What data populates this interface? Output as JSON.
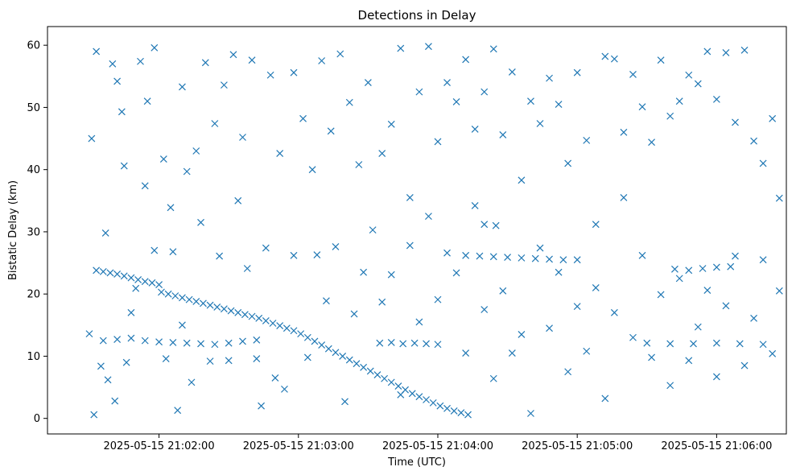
{
  "chart_data": {
    "type": "scatter",
    "title": "Detections in Delay",
    "xlabel": "Time (UTC)",
    "ylabel": "Bistatic Delay (km)",
    "x_type": "datetime",
    "xlim": [
      "2025-05-15 21:01:12",
      "2025-05-15 21:06:30"
    ],
    "ylim": [
      -2.5,
      63
    ],
    "x_ticks": [
      "2025-05-15 21:02:00",
      "2025-05-15 21:03:00",
      "2025-05-15 21:04:00",
      "2025-05-15 21:05:00",
      "2025-05-15 21:06:00"
    ],
    "y_ticks": [
      0,
      10,
      20,
      30,
      40,
      50,
      60
    ],
    "grid": false,
    "marker": "x",
    "color": "#1f77b4",
    "series": [
      {
        "points": [
          [
            "2025-05-15 21:01:33",
            23.8
          ],
          [
            "2025-05-15 21:01:36",
            23.6
          ],
          [
            "2025-05-15 21:01:39",
            23.4
          ],
          [
            "2025-05-15 21:01:42",
            23.2
          ],
          [
            "2025-05-15 21:01:45",
            22.9
          ],
          [
            "2025-05-15 21:01:48",
            22.6
          ],
          [
            "2025-05-15 21:01:51",
            22.3
          ],
          [
            "2025-05-15 21:01:54",
            22.0
          ],
          [
            "2025-05-15 21:01:57",
            21.8
          ],
          [
            "2025-05-15 21:02:00",
            21.5
          ],
          [
            "2025-05-15 21:02:01",
            20.3
          ],
          [
            "2025-05-15 21:02:04",
            20.0
          ],
          [
            "2025-05-15 21:02:07",
            19.7
          ],
          [
            "2025-05-15 21:02:10",
            19.4
          ],
          [
            "2025-05-15 21:02:13",
            19.1
          ],
          [
            "2025-05-15 21:02:16",
            18.8
          ],
          [
            "2025-05-15 21:02:19",
            18.5
          ],
          [
            "2025-05-15 21:02:22",
            18.2
          ],
          [
            "2025-05-15 21:02:25",
            17.9
          ],
          [
            "2025-05-15 21:02:28",
            17.6
          ],
          [
            "2025-05-15 21:02:31",
            17.3
          ],
          [
            "2025-05-15 21:02:34",
            17.0
          ],
          [
            "2025-05-15 21:02:37",
            16.7
          ],
          [
            "2025-05-15 21:02:40",
            16.4
          ],
          [
            "2025-05-15 21:02:43",
            16.1
          ],
          [
            "2025-05-15 21:02:46",
            15.7
          ],
          [
            "2025-05-15 21:02:49",
            15.3
          ],
          [
            "2025-05-15 21:02:52",
            14.9
          ],
          [
            "2025-05-15 21:02:55",
            14.5
          ],
          [
            "2025-05-15 21:02:58",
            14.1
          ],
          [
            "2025-05-15 21:03:01",
            13.6
          ],
          [
            "2025-05-15 21:03:04",
            13.0
          ],
          [
            "2025-05-15 21:03:07",
            12.4
          ],
          [
            "2025-05-15 21:03:10",
            11.8
          ],
          [
            "2025-05-15 21:03:13",
            11.2
          ],
          [
            "2025-05-15 21:03:16",
            10.6
          ],
          [
            "2025-05-15 21:03:19",
            10.0
          ],
          [
            "2025-05-15 21:03:22",
            9.4
          ],
          [
            "2025-05-15 21:03:25",
            8.8
          ],
          [
            "2025-05-15 21:03:28",
            8.2
          ],
          [
            "2025-05-15 21:03:31",
            7.6
          ],
          [
            "2025-05-15 21:03:34",
            7.0
          ],
          [
            "2025-05-15 21:03:37",
            6.4
          ],
          [
            "2025-05-15 21:03:40",
            5.8
          ],
          [
            "2025-05-15 21:03:43",
            5.2
          ],
          [
            "2025-05-15 21:03:46",
            4.6
          ],
          [
            "2025-05-15 21:03:49",
            4.0
          ],
          [
            "2025-05-15 21:03:52",
            3.5
          ],
          [
            "2025-05-15 21:03:55",
            3.0
          ],
          [
            "2025-05-15 21:03:58",
            2.5
          ],
          [
            "2025-05-15 21:04:01",
            2.0
          ],
          [
            "2025-05-15 21:04:04",
            1.6
          ],
          [
            "2025-05-15 21:04:07",
            1.2
          ],
          [
            "2025-05-15 21:04:10",
            0.9
          ],
          [
            "2025-05-15 21:04:13",
            0.6
          ],
          [
            "2025-05-15 21:01:30",
            13.6
          ],
          [
            "2025-05-15 21:01:36",
            12.5
          ],
          [
            "2025-05-15 21:01:42",
            12.7
          ],
          [
            "2025-05-15 21:01:48",
            12.9
          ],
          [
            "2025-05-15 21:01:54",
            12.5
          ],
          [
            "2025-05-15 21:02:00",
            12.3
          ],
          [
            "2025-05-15 21:02:06",
            12.2
          ],
          [
            "2025-05-15 21:02:12",
            12.1
          ],
          [
            "2025-05-15 21:02:18",
            12.0
          ],
          [
            "2025-05-15 21:02:24",
            11.9
          ],
          [
            "2025-05-15 21:02:30",
            12.1
          ],
          [
            "2025-05-15 21:02:36",
            12.4
          ],
          [
            "2025-05-15 21:02:42",
            12.6
          ],
          [
            "2025-05-15 21:03:35",
            12.1
          ],
          [
            "2025-05-15 21:03:40",
            12.2
          ],
          [
            "2025-05-15 21:03:45",
            12.0
          ],
          [
            "2025-05-15 21:03:50",
            12.1
          ],
          [
            "2025-05-15 21:03:55",
            12.0
          ],
          [
            "2025-05-15 21:04:00",
            11.9
          ],
          [
            "2025-05-15 21:04:12",
            26.2
          ],
          [
            "2025-05-15 21:04:18",
            26.1
          ],
          [
            "2025-05-15 21:04:24",
            26.0
          ],
          [
            "2025-05-15 21:04:30",
            25.9
          ],
          [
            "2025-05-15 21:04:36",
            25.8
          ],
          [
            "2025-05-15 21:04:42",
            25.7
          ],
          [
            "2025-05-15 21:04:48",
            25.6
          ],
          [
            "2025-05-15 21:04:54",
            25.5
          ],
          [
            "2025-05-15 21:05:00",
            25.5
          ],
          [
            "2025-05-15 21:04:20",
            31.2
          ],
          [
            "2025-05-15 21:04:25",
            31.0
          ],
          [
            "2025-05-15 21:05:42",
            24.0
          ],
          [
            "2025-05-15 21:05:48",
            23.8
          ],
          [
            "2025-05-15 21:05:54",
            24.1
          ],
          [
            "2025-05-15 21:06:00",
            24.3
          ],
          [
            "2025-05-15 21:06:06",
            24.4
          ],
          [
            "2025-05-15 21:05:30",
            12.1
          ],
          [
            "2025-05-15 21:05:40",
            12.0
          ],
          [
            "2025-05-15 21:05:50",
            12.0
          ],
          [
            "2025-05-15 21:06:00",
            12.1
          ],
          [
            "2025-05-15 21:06:10",
            12.0
          ],
          [
            "2025-05-15 21:06:20",
            11.9
          ],
          [
            "2025-05-15 21:01:31",
            45.0
          ],
          [
            "2025-05-15 21:01:33",
            59.0
          ],
          [
            "2025-05-15 21:01:37",
            29.8
          ],
          [
            "2025-05-15 21:01:40",
            57.0
          ],
          [
            "2025-05-15 21:01:42",
            54.2
          ],
          [
            "2025-05-15 21:01:44",
            49.3
          ],
          [
            "2025-05-15 21:01:45",
            40.6
          ],
          [
            "2025-05-15 21:01:48",
            17.0
          ],
          [
            "2025-05-15 21:01:52",
            57.4
          ],
          [
            "2025-05-15 21:01:55",
            51.0
          ],
          [
            "2025-05-15 21:01:58",
            59.6
          ],
          [
            "2025-05-15 21:02:02",
            41.7
          ],
          [
            "2025-05-15 21:02:05",
            33.9
          ],
          [
            "2025-05-15 21:02:08",
            1.3
          ],
          [
            "2025-05-15 21:02:10",
            53.3
          ],
          [
            "2025-05-15 21:02:12",
            39.7
          ],
          [
            "2025-05-15 21:02:16",
            43.0
          ],
          [
            "2025-05-15 21:02:20",
            57.2
          ],
          [
            "2025-05-15 21:02:24",
            47.4
          ],
          [
            "2025-05-15 21:02:28",
            53.6
          ],
          [
            "2025-05-15 21:02:32",
            58.5
          ],
          [
            "2025-05-15 21:02:36",
            45.2
          ],
          [
            "2025-05-15 21:02:40",
            57.6
          ],
          [
            "2025-05-15 21:02:44",
            2.0
          ],
          [
            "2025-05-15 21:02:48",
            55.2
          ],
          [
            "2025-05-15 21:02:52",
            42.6
          ],
          [
            "2025-05-15 21:02:58",
            55.6
          ],
          [
            "2025-05-15 21:03:02",
            48.2
          ],
          [
            "2025-05-15 21:03:06",
            40.0
          ],
          [
            "2025-05-15 21:03:10",
            57.5
          ],
          [
            "2025-05-15 21:03:14",
            46.2
          ],
          [
            "2025-05-15 21:03:18",
            58.6
          ],
          [
            "2025-05-15 21:03:22",
            50.8
          ],
          [
            "2025-05-15 21:03:26",
            40.8
          ],
          [
            "2025-05-15 21:03:30",
            54.0
          ],
          [
            "2025-05-15 21:03:36",
            42.6
          ],
          [
            "2025-05-15 21:03:40",
            47.3
          ],
          [
            "2025-05-15 21:03:44",
            59.5
          ],
          [
            "2025-05-15 21:03:48",
            35.5
          ],
          [
            "2025-05-15 21:03:52",
            52.5
          ],
          [
            "2025-05-15 21:03:56",
            59.8
          ],
          [
            "2025-05-15 21:04:00",
            44.5
          ],
          [
            "2025-05-15 21:04:04",
            54.0
          ],
          [
            "2025-05-15 21:04:08",
            50.9
          ],
          [
            "2025-05-15 21:04:12",
            57.7
          ],
          [
            "2025-05-15 21:04:16",
            46.5
          ],
          [
            "2025-05-15 21:04:20",
            52.5
          ],
          [
            "2025-05-15 21:04:24",
            59.4
          ],
          [
            "2025-05-15 21:04:28",
            45.6
          ],
          [
            "2025-05-15 21:04:32",
            55.7
          ],
          [
            "2025-05-15 21:04:36",
            38.3
          ],
          [
            "2025-05-15 21:04:40",
            51.0
          ],
          [
            "2025-05-15 21:04:44",
            47.4
          ],
          [
            "2025-05-15 21:04:48",
            54.7
          ],
          [
            "2025-05-15 21:04:52",
            50.5
          ],
          [
            "2025-05-15 21:04:56",
            41.0
          ],
          [
            "2025-05-15 21:05:00",
            55.6
          ],
          [
            "2025-05-15 21:05:04",
            44.7
          ],
          [
            "2025-05-15 21:05:08",
            31.2
          ],
          [
            "2025-05-15 21:05:12",
            58.2
          ],
          [
            "2025-05-15 21:05:16",
            57.8
          ],
          [
            "2025-05-15 21:05:20",
            46.0
          ],
          [
            "2025-05-15 21:05:24",
            55.3
          ],
          [
            "2025-05-15 21:05:28",
            50.1
          ],
          [
            "2025-05-15 21:05:32",
            44.4
          ],
          [
            "2025-05-15 21:05:36",
            57.6
          ],
          [
            "2025-05-15 21:05:40",
            48.6
          ],
          [
            "2025-05-15 21:05:44",
            51.0
          ],
          [
            "2025-05-15 21:05:48",
            55.2
          ],
          [
            "2025-05-15 21:05:52",
            53.8
          ],
          [
            "2025-05-15 21:05:56",
            59.0
          ],
          [
            "2025-05-15 21:06:00",
            51.3
          ],
          [
            "2025-05-15 21:06:04",
            58.8
          ],
          [
            "2025-05-15 21:06:08",
            47.6
          ],
          [
            "2025-05-15 21:06:12",
            59.2
          ],
          [
            "2025-05-15 21:06:16",
            44.6
          ],
          [
            "2025-05-15 21:06:20",
            41.0
          ],
          [
            "2025-05-15 21:06:24",
            48.2
          ],
          [
            "2025-05-15 21:06:27",
            35.4
          ],
          [
            "2025-05-15 21:01:32",
            0.6
          ],
          [
            "2025-05-15 21:01:35",
            8.4
          ],
          [
            "2025-05-15 21:01:38",
            6.2
          ],
          [
            "2025-05-15 21:01:41",
            2.8
          ],
          [
            "2025-05-15 21:01:46",
            9.0
          ],
          [
            "2025-05-15 21:01:50",
            20.9
          ],
          [
            "2025-05-15 21:01:54",
            37.4
          ],
          [
            "2025-05-15 21:01:58",
            27.0
          ],
          [
            "2025-05-15 21:02:03",
            9.6
          ],
          [
            "2025-05-15 21:02:06",
            26.8
          ],
          [
            "2025-05-15 21:02:10",
            15.0
          ],
          [
            "2025-05-15 21:02:14",
            5.8
          ],
          [
            "2025-05-15 21:02:18",
            31.5
          ],
          [
            "2025-05-15 21:02:22",
            9.2
          ],
          [
            "2025-05-15 21:02:26",
            26.1
          ],
          [
            "2025-05-15 21:02:30",
            9.3
          ],
          [
            "2025-05-15 21:02:34",
            35.0
          ],
          [
            "2025-05-15 21:02:38",
            24.1
          ],
          [
            "2025-05-15 21:02:42",
            9.6
          ],
          [
            "2025-05-15 21:02:46",
            27.4
          ],
          [
            "2025-05-15 21:02:50",
            6.5
          ],
          [
            "2025-05-15 21:02:54",
            4.7
          ],
          [
            "2025-05-15 21:02:58",
            26.2
          ],
          [
            "2025-05-15 21:03:04",
            9.8
          ],
          [
            "2025-05-15 21:03:08",
            26.3
          ],
          [
            "2025-05-15 21:03:12",
            18.9
          ],
          [
            "2025-05-15 21:03:16",
            27.6
          ],
          [
            "2025-05-15 21:03:20",
            2.7
          ],
          [
            "2025-05-15 21:03:24",
            16.8
          ],
          [
            "2025-05-15 21:03:28",
            23.5
          ],
          [
            "2025-05-15 21:03:32",
            30.3
          ],
          [
            "2025-05-15 21:03:36",
            18.7
          ],
          [
            "2025-05-15 21:03:40",
            23.1
          ],
          [
            "2025-05-15 21:03:44",
            3.8
          ],
          [
            "2025-05-15 21:03:48",
            27.8
          ],
          [
            "2025-05-15 21:03:52",
            15.5
          ],
          [
            "2025-05-15 21:03:56",
            32.5
          ],
          [
            "2025-05-15 21:04:00",
            19.1
          ],
          [
            "2025-05-15 21:04:04",
            26.6
          ],
          [
            "2025-05-15 21:04:08",
            23.4
          ],
          [
            "2025-05-15 21:04:12",
            10.5
          ],
          [
            "2025-05-15 21:04:16",
            34.2
          ],
          [
            "2025-05-15 21:04:20",
            17.5
          ],
          [
            "2025-05-15 21:04:24",
            6.4
          ],
          [
            "2025-05-15 21:04:28",
            20.5
          ],
          [
            "2025-05-15 21:04:32",
            10.5
          ],
          [
            "2025-05-15 21:04:36",
            13.5
          ],
          [
            "2025-05-15 21:04:40",
            0.8
          ],
          [
            "2025-05-15 21:04:44",
            27.4
          ],
          [
            "2025-05-15 21:04:48",
            14.5
          ],
          [
            "2025-05-15 21:04:52",
            23.5
          ],
          [
            "2025-05-15 21:04:56",
            7.5
          ],
          [
            "2025-05-15 21:05:00",
            18.0
          ],
          [
            "2025-05-15 21:05:04",
            10.8
          ],
          [
            "2025-05-15 21:05:08",
            21.0
          ],
          [
            "2025-05-15 21:05:12",
            3.2
          ],
          [
            "2025-05-15 21:05:16",
            17.0
          ],
          [
            "2025-05-15 21:05:20",
            35.5
          ],
          [
            "2025-05-15 21:05:24",
            13.0
          ],
          [
            "2025-05-15 21:05:28",
            26.2
          ],
          [
            "2025-05-15 21:05:32",
            9.8
          ],
          [
            "2025-05-15 21:05:36",
            19.9
          ],
          [
            "2025-05-15 21:05:40",
            5.3
          ],
          [
            "2025-05-15 21:05:44",
            22.5
          ],
          [
            "2025-05-15 21:05:48",
            9.3
          ],
          [
            "2025-05-15 21:05:52",
            14.7
          ],
          [
            "2025-05-15 21:05:56",
            20.6
          ],
          [
            "2025-05-15 21:06:00",
            6.7
          ],
          [
            "2025-05-15 21:06:04",
            18.1
          ],
          [
            "2025-05-15 21:06:08",
            26.1
          ],
          [
            "2025-05-15 21:06:12",
            8.5
          ],
          [
            "2025-05-15 21:06:16",
            16.1
          ],
          [
            "2025-05-15 21:06:20",
            25.5
          ],
          [
            "2025-05-15 21:06:24",
            10.4
          ],
          [
            "2025-05-15 21:06:27",
            20.5
          ]
        ]
      }
    ]
  }
}
